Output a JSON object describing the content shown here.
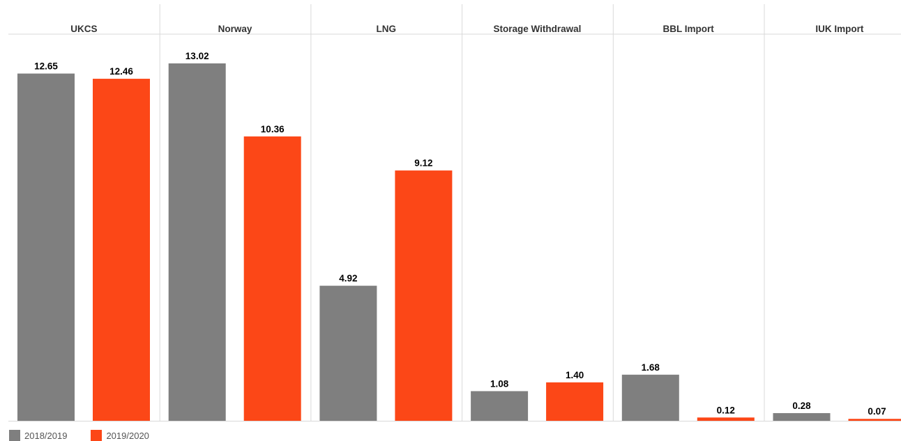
{
  "chart_data": {
    "type": "bar",
    "categories": [
      "UKCS",
      "Norway",
      "LNG",
      "Storage Withdrawal",
      "BBL Import",
      "IUK Import"
    ],
    "series": [
      {
        "name": "2018/2019",
        "color": "#7f7f7f",
        "values": [
          12.65,
          13.02,
          4.92,
          1.08,
          1.68,
          0.28
        ],
        "labels": [
          "12.65",
          "13.02",
          "4.92",
          "1.08",
          "1.68",
          "0.28"
        ]
      },
      {
        "name": "2019/2020",
        "color": "#fc4717",
        "values": [
          12.46,
          10.36,
          9.12,
          1.4,
          0.12,
          0.07
        ],
        "labels": [
          "12.46",
          "10.36",
          "9.12",
          "1.40",
          "0.12",
          "0.07"
        ]
      }
    ],
    "ylim": [
      0,
      13.95
    ],
    "grid": false,
    "legend_position": "bottom-left"
  }
}
